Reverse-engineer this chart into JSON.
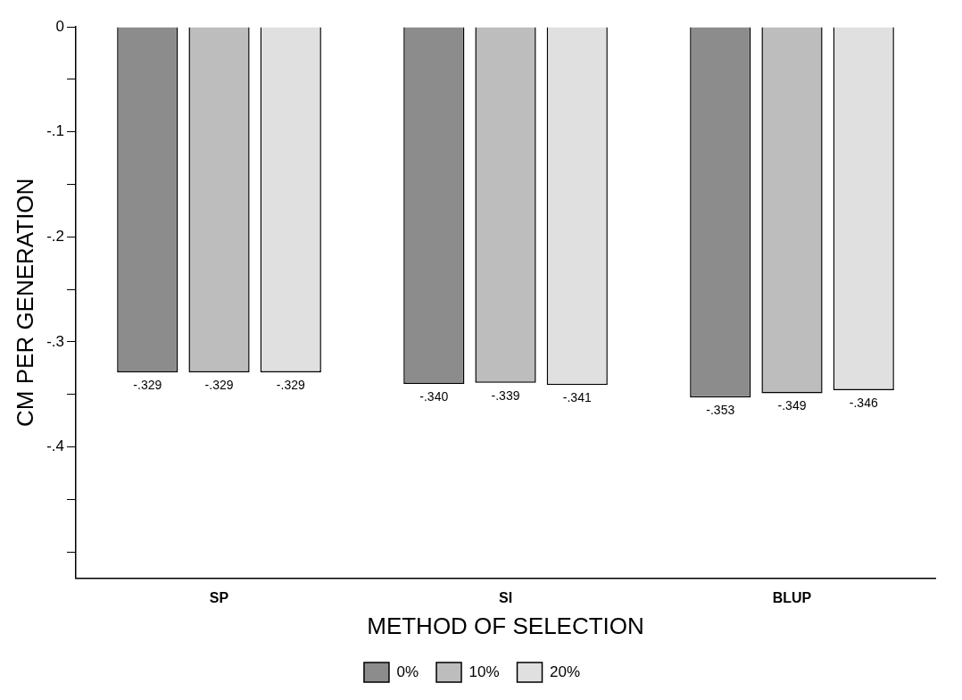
{
  "chart_data": {
    "type": "bar",
    "xlabel": "METHOD OF SELECTION",
    "ylabel": "CM PER GENERATION",
    "categories": [
      "SP",
      "SI",
      "BLUP"
    ],
    "series": [
      {
        "name": "0%",
        "color": "#8c8c8c",
        "values": [
          -0.329,
          -0.34,
          -0.353
        ],
        "value_labels": [
          "-.329",
          "-.340",
          "-.353"
        ]
      },
      {
        "name": "10%",
        "color": "#bdbdbd",
        "values": [
          -0.329,
          -0.339,
          -0.349
        ],
        "value_labels": [
          "-.329",
          "-.339",
          "-.349"
        ]
      },
      {
        "name": "20%",
        "color": "#e0e0e0",
        "values": [
          -0.329,
          -0.341,
          -0.346
        ],
        "value_labels": [
          "-.329",
          "-.341",
          "-.346"
        ]
      }
    ],
    "ylim": [
      -0.525,
      0
    ],
    "yticks": [
      {
        "value": 0,
        "label": "0"
      },
      {
        "value": -0.05,
        "label": null
      },
      {
        "value": -0.1,
        "label": "-.1"
      },
      {
        "value": -0.15,
        "label": null
      },
      {
        "value": -0.2,
        "label": "-.2"
      },
      {
        "value": -0.25,
        "label": null
      },
      {
        "value": -0.3,
        "label": "-.3"
      },
      {
        "value": -0.35,
        "label": null
      },
      {
        "value": -0.4,
        "label": "-.4"
      },
      {
        "value": -0.45,
        "label": null
      },
      {
        "value": -0.5,
        "label": null
      }
    ],
    "grid": false,
    "legend": "bottom"
  }
}
